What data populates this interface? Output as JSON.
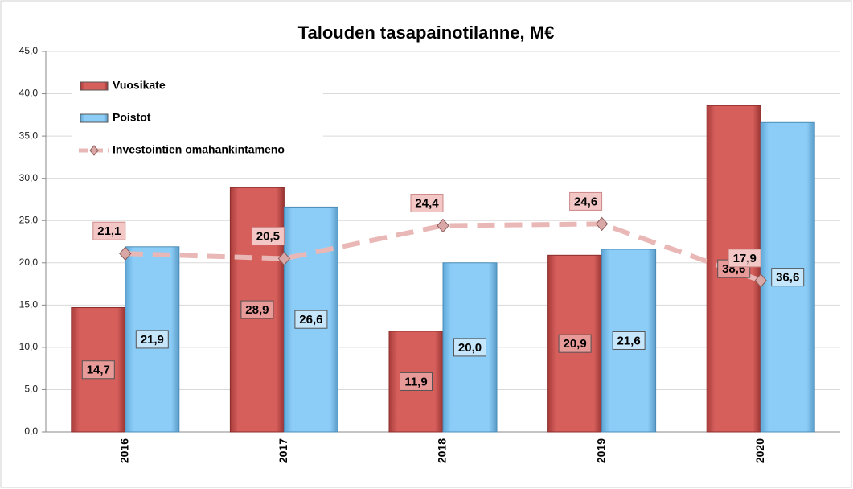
{
  "chart_data": {
    "type": "bar",
    "title": "Talouden tasapainotilanne, M€",
    "categories": [
      "2016",
      "2017",
      "2018",
      "2019",
      "2020"
    ],
    "series": [
      {
        "name": "Vuosikate",
        "type": "bar",
        "color": "#d65f5c",
        "values": [
          14.7,
          28.9,
          11.9,
          20.9,
          38.6
        ],
        "value_labels": [
          "14,7",
          "28,9",
          "11,9",
          "20,9",
          "38,6"
        ]
      },
      {
        "name": "Poistot",
        "type": "bar",
        "color": "#8ccdf7",
        "values": [
          21.9,
          26.6,
          20.0,
          21.6,
          36.6
        ],
        "value_labels": [
          "21,9",
          "26,6",
          "20,0",
          "21,6",
          "36,6"
        ]
      },
      {
        "name": "Investointien omahankintameno",
        "type": "line",
        "color": "#e9b8b6",
        "values": [
          21.1,
          20.5,
          24.4,
          24.6,
          17.9
        ],
        "value_labels": [
          "21,1",
          "20,5",
          "24,4",
          "24,6",
          "17,9"
        ]
      }
    ],
    "ylim": [
      0,
      45
    ],
    "yticks": [
      {
        "value": 0,
        "label": "0,0"
      },
      {
        "value": 5,
        "label": "5,0"
      },
      {
        "value": 10,
        "label": "10,0"
      },
      {
        "value": 15,
        "label": "15,0"
      },
      {
        "value": 20,
        "label": "20,0"
      },
      {
        "value": 25,
        "label": "25,0"
      },
      {
        "value": 30,
        "label": "30,0"
      },
      {
        "value": 35,
        "label": "35,0"
      },
      {
        "value": 40,
        "label": "40,0"
      },
      {
        "value": 45,
        "label": "45,0"
      }
    ],
    "grid": true,
    "legend": "top-left"
  }
}
